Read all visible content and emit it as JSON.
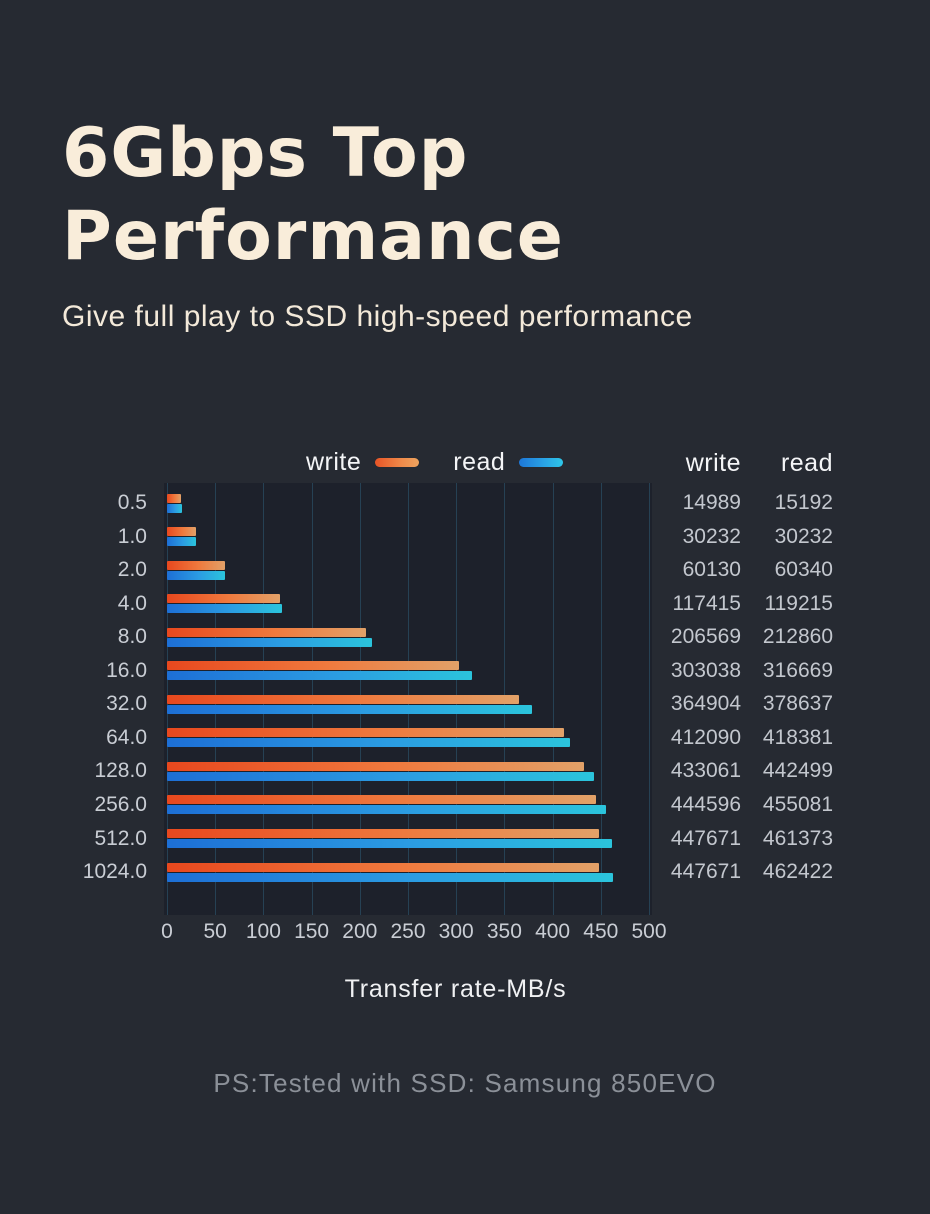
{
  "page": {
    "background": "#262a32"
  },
  "header": {
    "title_lines": [
      "6Gbps Top",
      "Performance"
    ],
    "title_color": "#f9edda",
    "subtitle": "Give full play to SSD high-speed performance"
  },
  "legend": {
    "write_label": "write",
    "read_label": "read",
    "write_color_start": "#e75426",
    "write_color_end": "#eda45f",
    "read_color_start": "#1d77d8",
    "read_color_end": "#2ec7e8"
  },
  "value_table": {
    "write_header": "write",
    "read_header": "read"
  },
  "chart_data": {
    "type": "bar",
    "orientation": "horizontal",
    "categories": [
      "0.5",
      "1.0",
      "2.0",
      "4.0",
      "8.0",
      "16.0",
      "32.0",
      "64.0",
      "128.0",
      "256.0",
      "512.0",
      "1024.0"
    ],
    "series": [
      {
        "name": "write",
        "values": [
          14989,
          30232,
          60130,
          117415,
          206569,
          303038,
          364904,
          412090,
          433061,
          444596,
          447671,
          447671
        ],
        "bar_gradient": [
          "#e8481e",
          "#ef7a3e",
          "#e2a168"
        ]
      },
      {
        "name": "read",
        "values": [
          15192,
          30232,
          60340,
          119215,
          212860,
          316669,
          378637,
          418381,
          442499,
          455081,
          461373,
          462422
        ],
        "bar_gradient": [
          "#1d6fd6",
          "#2b9ce2",
          "#2bc4dc"
        ]
      }
    ],
    "bar_scale_divisor": 1000,
    "x_ticks": [
      0,
      50,
      100,
      150,
      200,
      250,
      300,
      350,
      400,
      450,
      500
    ],
    "xlim": [
      0,
      500
    ],
    "xlabel": "Transfer rate-MB/s",
    "grid": "vertical",
    "legend_position": "top",
    "plot_background": "#1d212b",
    "gridline_color": "rgba(64,150,190,0.28)"
  },
  "footer": {
    "note": "PS:Tested with SSD: Samsung 850EVO"
  }
}
